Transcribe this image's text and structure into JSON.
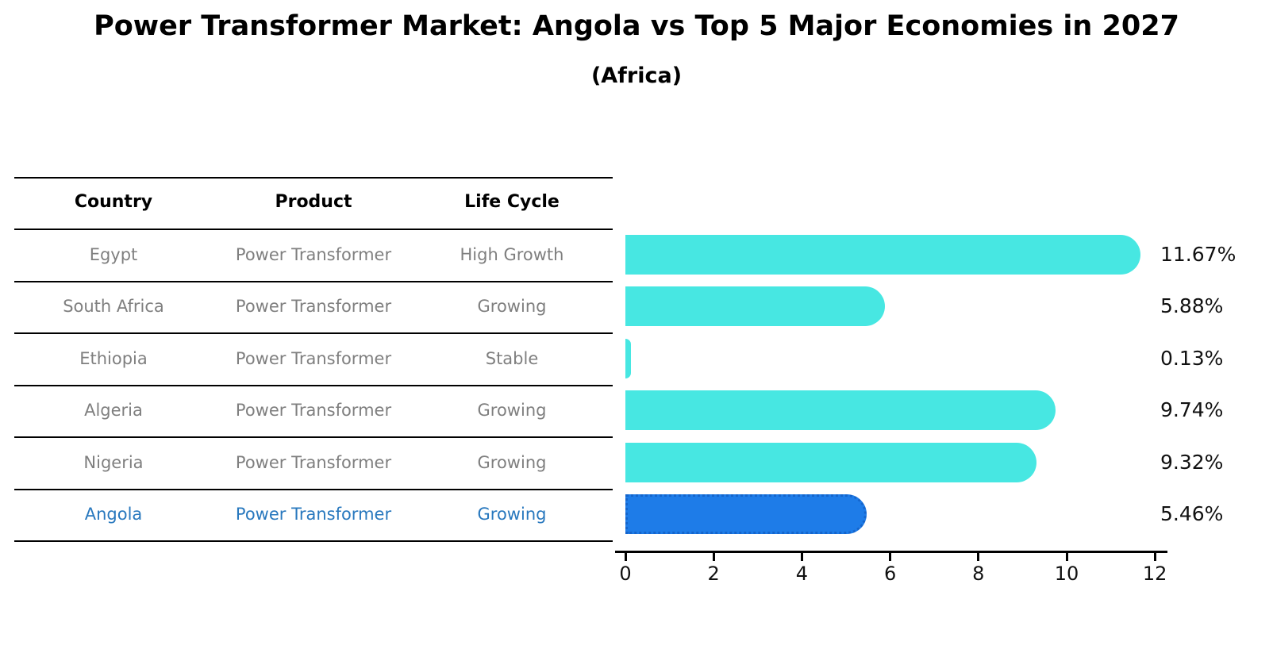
{
  "title": "Power Transformer Market: Angola vs Top 5 Major Economies in 2027",
  "subtitle": "(Africa)",
  "table": {
    "headers": [
      "Country",
      "Product",
      "Life Cycle"
    ],
    "rows": [
      {
        "country": "Egypt",
        "product": "Power Transformer",
        "life_cycle": "High Growth"
      },
      {
        "country": "South Africa",
        "product": "Power Transformer",
        "life_cycle": "Growing"
      },
      {
        "country": "Ethiopia",
        "product": "Power Transformer",
        "life_cycle": "Stable"
      },
      {
        "country": "Algeria",
        "product": "Power Transformer",
        "life_cycle": "Growing"
      },
      {
        "country": "Nigeria",
        "product": "Power Transformer",
        "life_cycle": "Growing"
      },
      {
        "country": "Angola",
        "product": "Power Transformer",
        "life_cycle": "Growing"
      }
    ]
  },
  "chart_data": {
    "type": "bar",
    "orientation": "horizontal",
    "title": "Power Transformer Market: Angola vs Top 5 Major Economies in 2027 (Africa)",
    "categories": [
      "Egypt",
      "South Africa",
      "Ethiopia",
      "Algeria",
      "Nigeria",
      "Angola"
    ],
    "values": [
      11.67,
      5.88,
      0.13,
      9.74,
      9.32,
      5.46
    ],
    "value_labels": [
      "11.67%",
      "5.88%",
      "0.13%",
      "9.74%",
      "9.32%",
      "5.46%"
    ],
    "x_ticks": [
      0,
      2,
      4,
      6,
      8,
      10,
      12
    ],
    "xlim": [
      0,
      12.5
    ],
    "grid": false,
    "legend": "none",
    "highlight_index": 5,
    "colors": {
      "bar": "#47E7E2",
      "highlight_bar": "#1E7CE8",
      "highlight_border": "#1565CC",
      "highlight_text": "#2878BE",
      "gray_text": "#7F7F7F",
      "axis": "#000000"
    }
  }
}
